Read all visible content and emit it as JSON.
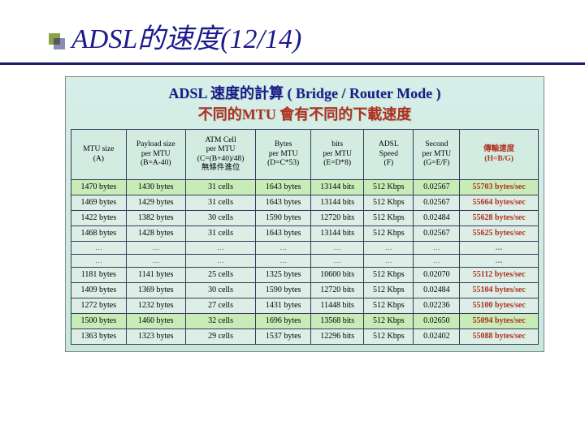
{
  "title": "ADSL的速度(12/14)",
  "panel": {
    "subtitle_line1": "ADSL 速度的計算 ( Bridge / Router Mode )",
    "subtitle_line2": "不同的MTU 會有不同的下載速度"
  },
  "table": {
    "columns": [
      "MTU size\n(A)",
      "Payload size\nper MTU\n(B=A-40)",
      "ATM Cell\nper MTU\n(C=(B+40)/48)\n無條件進位",
      "Bytes\nper MTU\n(D=C*53)",
      "bits\nper MTU\n(E=D*8)",
      "ADSL\nSpeed\n(F)",
      "Second\nper MTU\n(G=E/F)",
      "傳輸速度\n(H=B/G)"
    ],
    "rows": [
      {
        "hl": true,
        "c": [
          "1470 bytes",
          "1430 bytes",
          "31 cells",
          "1643 bytes",
          "13144 bits",
          "512 Kbps",
          "0.02567",
          "55703 bytes/sec"
        ]
      },
      {
        "hl": false,
        "c": [
          "1469 bytes",
          "1429 bytes",
          "31 cells",
          "1643 bytes",
          "13144 bits",
          "512 Kbps",
          "0.02567",
          "55664 bytes/sec"
        ]
      },
      {
        "hl": false,
        "c": [
          "1422 bytes",
          "1382 bytes",
          "30 cells",
          "1590 bytes",
          "12720 bits",
          "512 Kbps",
          "0.02484",
          "55628 bytes/sec"
        ]
      },
      {
        "hl": false,
        "c": [
          "1468 bytes",
          "1428 bytes",
          "31 cells",
          "1643 bytes",
          "13144 bits",
          "512 Kbps",
          "0.02567",
          "55625 bytes/sec"
        ]
      }
    ],
    "gap": [
      "…",
      "…",
      "…",
      "…",
      "…",
      "…",
      "…",
      "…"
    ],
    "rows2": [
      {
        "hl": false,
        "c": [
          "1181 bytes",
          "1141 bytes",
          "25 cells",
          "1325 bytes",
          "10600 bits",
          "512 Kbps",
          "0.02070",
          "55112 bytes/sec"
        ]
      },
      {
        "hl": false,
        "c": [
          "1409 bytes",
          "1369 bytes",
          "30 cells",
          "1590 bytes",
          "12720 bits",
          "512 Kbps",
          "0.02484",
          "55104 bytes/sec"
        ]
      },
      {
        "hl": false,
        "c": [
          "1272 bytes",
          "1232 bytes",
          "27 cells",
          "1431 bytes",
          "11448 bits",
          "512 Kbps",
          "0.02236",
          "55100 bytes/sec"
        ]
      },
      {
        "hl": true,
        "c": [
          "1500 bytes",
          "1460 bytes",
          "32 cells",
          "1696 bytes",
          "13568 bits",
          "512 Kbps",
          "0.02650",
          "55094 bytes/sec"
        ]
      },
      {
        "hl": false,
        "c": [
          "1363 bytes",
          "1323 bytes",
          "29 cells",
          "1537 bytes",
          "12296 bits",
          "512 Kbps",
          "0.02402",
          "55088 bytes/sec"
        ]
      }
    ]
  },
  "styling": {
    "slide_bg": "#ffffff",
    "panel_bg_top": "#d6efe8",
    "panel_bg_bottom": "#c8e8dd",
    "highlight_row_bg": "#c8ecb8",
    "normal_row_bg": "#dceee6",
    "title_color": "#1a1a8a",
    "subtitle2_color": "#b03020",
    "last_col_color": "#b03020",
    "border_color": "#3a3a5a",
    "bullet_colors": [
      "#8aa04a",
      "#1a1a6a"
    ]
  }
}
